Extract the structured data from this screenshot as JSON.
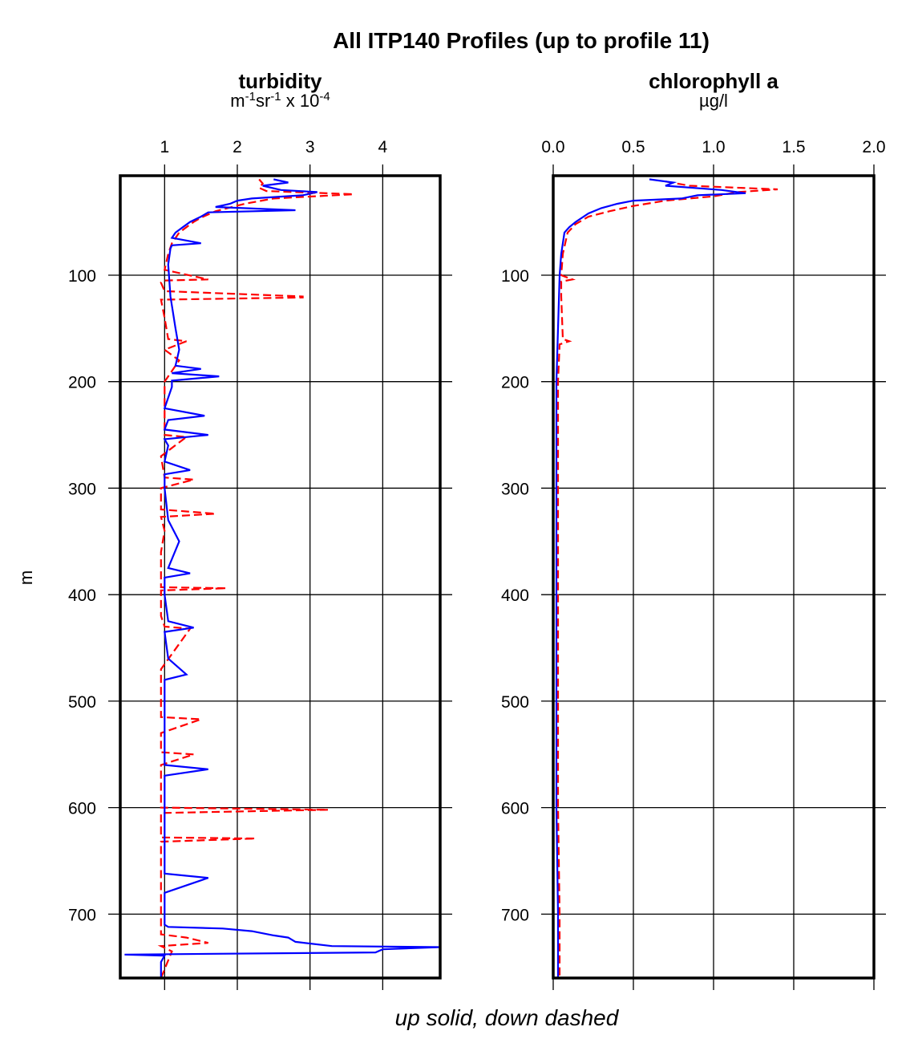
{
  "title": "All ITP140 Profiles (up to profile 11)",
  "ylabel": "m",
  "footer": "up solid, down dashed",
  "colors": {
    "up": "#0000ff",
    "down": "#ff0000",
    "frame": "#000000"
  },
  "chart_data": [
    {
      "type": "line",
      "title": "turbidity",
      "xlabel_parts": [
        "m",
        "-1",
        "sr",
        "-1",
        " x 10",
        "-4"
      ],
      "xlim": [
        0.39,
        4.79
      ],
      "xticks": [
        1,
        2,
        3,
        4
      ],
      "xtick_labels": [
        "1",
        "2",
        "3",
        "4"
      ],
      "ylim": [
        760,
        6.6
      ],
      "yticks": [
        100,
        200,
        300,
        400,
        500,
        600,
        700
      ],
      "ytick_labels": [
        "100",
        "200",
        "300",
        "400",
        "500",
        "600",
        "700"
      ],
      "grid": true,
      "series": [
        {
          "style": "up-solid",
          "color": "#0000ff",
          "depth": [
            10,
            13,
            16,
            20,
            22,
            25,
            28,
            30,
            33,
            36,
            39,
            41,
            45,
            50,
            55,
            60,
            65,
            70,
            72,
            75,
            90,
            120,
            150,
            170,
            185,
            188,
            192,
            195,
            199,
            205,
            215,
            225,
            232,
            236,
            245,
            250,
            254,
            260,
            275,
            283,
            287,
            300,
            330,
            350,
            375,
            380,
            384,
            400,
            425,
            431,
            435,
            460,
            475,
            480,
            500,
            530,
            560,
            564,
            570,
            600,
            640,
            662,
            666,
            680,
            700,
            710,
            712,
            713.5,
            716,
            720,
            722,
            726,
            730,
            731,
            733,
            736,
            738,
            739,
            745,
            760
          ],
          "values": [
            2.5,
            2.7,
            2.35,
            2.6,
            3.1,
            2.9,
            2.2,
            2.0,
            1.9,
            1.7,
            2.8,
            1.6,
            1.5,
            1.35,
            1.25,
            1.15,
            1.1,
            1.5,
            1.1,
            1.08,
            1.05,
            1.08,
            1.15,
            1.2,
            1.15,
            1.5,
            1.1,
            1.75,
            1.1,
            1.1,
            1.05,
            1.0,
            1.55,
            1.05,
            1.0,
            1.6,
            1.0,
            1.05,
            1.0,
            1.35,
            1.0,
            1.0,
            1.05,
            1.2,
            1.05,
            1.35,
            1.0,
            1.0,
            1.05,
            1.4,
            1.0,
            1.05,
            1.3,
            1.0,
            1.0,
            1.0,
            1.0,
            1.6,
            1.0,
            1.0,
            1.0,
            1.0,
            1.6,
            1.0,
            1.0,
            1.0,
            1.05,
            1.8,
            2.2,
            2.5,
            2.7,
            2.8,
            3.3,
            4.79,
            4.0,
            3.9,
            0.45,
            1.0,
            0.95,
            0.95
          ]
        },
        {
          "style": "down-dashed",
          "color": "#ff0000",
          "depth": [
            10,
            14,
            18,
            21,
            24,
            28,
            33,
            40,
            46,
            50,
            55,
            60,
            70,
            80,
            95,
            104,
            105,
            107,
            115,
            120,
            121,
            123,
            140,
            160,
            162,
            170,
            180,
            200,
            230,
            250,
            252,
            270,
            290,
            292,
            300,
            320,
            324,
            327,
            340,
            360,
            393,
            394,
            396,
            420,
            430,
            432,
            470,
            515,
            517,
            530,
            548,
            550,
            560,
            590,
            600,
            602,
            605,
            620,
            628,
            629,
            632,
            660,
            700,
            719,
            722,
            727,
            730,
            735,
            760
          ],
          "values": [
            2.3,
            2.35,
            2.3,
            2.4,
            3.6,
            2.5,
            2.1,
            1.7,
            1.5,
            1.4,
            1.3,
            1.2,
            1.1,
            1.05,
            1.0,
            1.6,
            1.0,
            0.95,
            1.0,
            2.9,
            2.9,
            0.95,
            1.0,
            1.05,
            1.3,
            1.0,
            1.2,
            1.0,
            1.0,
            1.0,
            1.3,
            0.95,
            1.0,
            1.4,
            0.95,
            0.95,
            1.7,
            0.95,
            1.0,
            0.95,
            0.95,
            1.85,
            0.95,
            0.95,
            1.0,
            1.35,
            0.95,
            0.95,
            1.5,
            0.95,
            0.95,
            1.4,
            0.95,
            0.95,
            0.95,
            3.25,
            0.95,
            0.95,
            0.95,
            2.25,
            0.95,
            0.95,
            0.95,
            0.95,
            1.3,
            1.6,
            0.95,
            1.1,
            0.95
          ]
        }
      ]
    },
    {
      "type": "line",
      "title": "chlorophyll a",
      "xlabel": "µg/l",
      "xlim": [
        0,
        2.0
      ],
      "xticks": [
        0,
        0.5,
        1.0,
        1.5,
        2.0
      ],
      "xtick_labels": [
        "0.0",
        "0.5",
        "1.0",
        "1.5",
        "2.0"
      ],
      "ylim": [
        760,
        6.6
      ],
      "yticks": [
        100,
        200,
        300,
        400,
        500,
        600,
        700
      ],
      "ytick_labels": [
        "100",
        "200",
        "300",
        "400",
        "500",
        "600",
        "700"
      ],
      "grid": true,
      "series": [
        {
          "style": "up-solid",
          "color": "#0000ff",
          "depth": [
            10,
            13,
            16,
            20,
            23,
            25,
            28,
            30,
            33,
            37,
            42,
            50,
            55,
            60,
            70,
            80,
            100,
            150,
            200,
            300,
            400,
            500,
            600,
            700,
            760
          ],
          "values": [
            0.6,
            0.75,
            0.7,
            1.05,
            1.2,
            0.9,
            0.8,
            0.5,
            0.4,
            0.3,
            0.22,
            0.14,
            0.1,
            0.07,
            0.06,
            0.05,
            0.04,
            0.03,
            0.02,
            0.02,
            0.02,
            0.02,
            0.02,
            0.03,
            0.03
          ]
        },
        {
          "style": "down-dashed",
          "color": "#ff0000",
          "depth": [
            12,
            16,
            19.4,
            22,
            26,
            30,
            35,
            40,
            45,
            52,
            60,
            80,
            100,
            104,
            106,
            120,
            160,
            162,
            165,
            200,
            300,
            400,
            500,
            600,
            700,
            760
          ],
          "values": [
            0.7,
            0.85,
            1.4,
            1.15,
            1.0,
            0.7,
            0.5,
            0.35,
            0.22,
            0.14,
            0.09,
            0.06,
            0.05,
            0.12,
            0.05,
            0.05,
            0.06,
            0.1,
            0.04,
            0.03,
            0.03,
            0.03,
            0.03,
            0.03,
            0.04,
            0.04
          ]
        }
      ]
    }
  ]
}
